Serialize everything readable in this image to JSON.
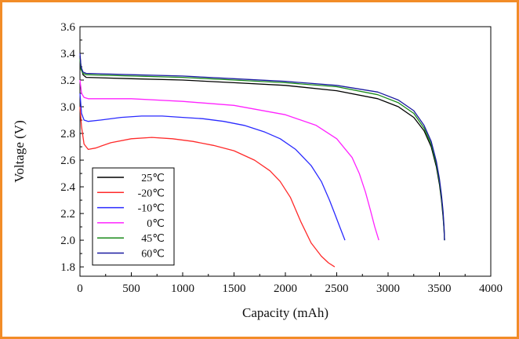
{
  "frame_color": "#f28c28",
  "chart_data": {
    "type": "line",
    "title": "",
    "xlabel": "Capacity (mAh)",
    "ylabel": "Voltage (V)",
    "xlim": [
      0,
      4000
    ],
    "ylim": [
      1.73,
      3.6
    ],
    "xticks": [
      0,
      500,
      1000,
      1500,
      2000,
      2500,
      3000,
      3500,
      4000
    ],
    "yticks": [
      1.8,
      2.0,
      2.2,
      2.4,
      2.6,
      2.8,
      3.0,
      3.2,
      3.4,
      3.6
    ],
    "xtick_labels": [
      "0",
      "500",
      "1000",
      "1500",
      "2000",
      "2500",
      "3000",
      "3500",
      "4000"
    ],
    "ytick_labels": [
      "1.8",
      "2.0",
      "2.2",
      "2.4",
      "2.6",
      "2.8",
      "3.0",
      "3.2",
      "3.4",
      "3.6"
    ],
    "grid": false,
    "legend_position": "bottom-left",
    "series": [
      {
        "name": "25℃",
        "color": "#000000",
        "x": [
          0,
          10,
          30,
          60,
          500,
          1000,
          1500,
          2000,
          2500,
          2900,
          3100,
          3250,
          3350,
          3420,
          3470,
          3500,
          3520,
          3535,
          3545,
          3550
        ],
        "y": [
          3.38,
          3.3,
          3.24,
          3.22,
          3.21,
          3.2,
          3.18,
          3.16,
          3.12,
          3.06,
          3.0,
          2.92,
          2.82,
          2.7,
          2.55,
          2.42,
          2.3,
          2.18,
          2.08,
          2.0
        ]
      },
      {
        "name": "-20℃",
        "color": "#ff2a2a",
        "x": [
          0,
          15,
          40,
          80,
          150,
          300,
          500,
          700,
          900,
          1100,
          1300,
          1500,
          1700,
          1850,
          1950,
          2050,
          2150,
          2250,
          2350,
          2420,
          2480
        ],
        "y": [
          3.0,
          2.85,
          2.72,
          2.68,
          2.69,
          2.73,
          2.76,
          2.77,
          2.76,
          2.74,
          2.71,
          2.67,
          2.6,
          2.52,
          2.44,
          2.32,
          2.14,
          1.98,
          1.88,
          1.83,
          1.8
        ]
      },
      {
        "name": "-10℃",
        "color": "#2a2aff",
        "x": [
          0,
          15,
          40,
          80,
          200,
          400,
          600,
          800,
          1000,
          1200,
          1400,
          1600,
          1800,
          1950,
          2100,
          2250,
          2350,
          2430,
          2480,
          2530,
          2580
        ],
        "y": [
          3.1,
          2.95,
          2.9,
          2.89,
          2.9,
          2.92,
          2.93,
          2.93,
          2.92,
          2.91,
          2.89,
          2.86,
          2.81,
          2.76,
          2.68,
          2.56,
          2.44,
          2.3,
          2.2,
          2.1,
          2.0
        ]
      },
      {
        "name": "0℃",
        "color": "#ff22ff",
        "x": [
          0,
          15,
          40,
          80,
          200,
          500,
          1000,
          1500,
          2000,
          2300,
          2500,
          2650,
          2720,
          2780,
          2830,
          2870,
          2910
        ],
        "y": [
          3.2,
          3.1,
          3.07,
          3.06,
          3.06,
          3.06,
          3.04,
          3.01,
          2.94,
          2.86,
          2.76,
          2.62,
          2.5,
          2.36,
          2.22,
          2.1,
          2.0
        ]
      },
      {
        "name": "45℃",
        "color": "#1a8a1a",
        "x": [
          0,
          10,
          30,
          60,
          500,
          1000,
          1500,
          2000,
          2500,
          2900,
          3100,
          3250,
          3350,
          3420,
          3470,
          3500,
          3520,
          3535,
          3545,
          3550
        ],
        "y": [
          3.36,
          3.28,
          3.25,
          3.24,
          3.23,
          3.22,
          3.2,
          3.18,
          3.15,
          3.09,
          3.03,
          2.95,
          2.84,
          2.72,
          2.57,
          2.44,
          2.32,
          2.2,
          2.08,
          2.0
        ]
      },
      {
        "name": "60℃",
        "color": "#1a1aa0",
        "x": [
          0,
          10,
          30,
          60,
          500,
          1000,
          1500,
          2000,
          2500,
          2900,
          3100,
          3250,
          3350,
          3420,
          3470,
          3500,
          3520,
          3535,
          3545,
          3550
        ],
        "y": [
          3.4,
          3.3,
          3.26,
          3.25,
          3.24,
          3.23,
          3.21,
          3.19,
          3.16,
          3.11,
          3.05,
          2.97,
          2.86,
          2.74,
          2.59,
          2.46,
          2.34,
          2.22,
          2.1,
          2.0
        ]
      }
    ]
  }
}
